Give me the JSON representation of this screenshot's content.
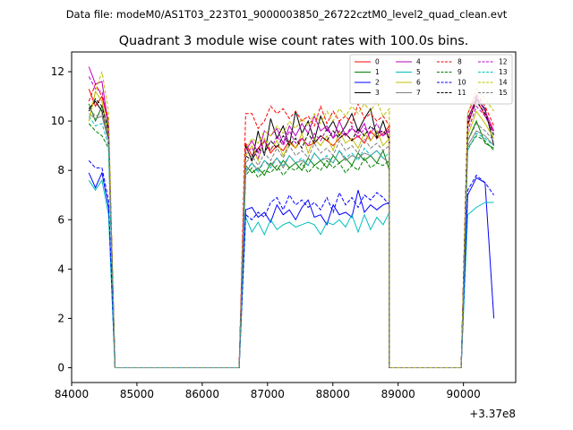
{
  "chart_data": {
    "type": "line",
    "suptitle": "Data file: modeM0/AS1T03_223T01_9000003850_26722cztM0_level2_quad_clean.evt",
    "title": "Quadrant 3 module wise count rates with 100.0s bins.",
    "xlabel": "",
    "ylabel": "",
    "offset_label": "+3.37e8",
    "x_offset": 337000000,
    "xlim": [
      84000,
      90800
    ],
    "ylim": [
      -0.6,
      12.8
    ],
    "x_ticks": [
      84000,
      85000,
      86000,
      87000,
      88000,
      89000,
      90000
    ],
    "x_tick_labels": [
      "84000",
      "85000",
      "86000",
      "87000",
      "88000",
      "89000",
      "90000"
    ],
    "y_ticks": [
      0,
      2,
      4,
      6,
      8,
      10,
      12
    ],
    "y_tick_labels": [
      "0",
      "2",
      "4",
      "6",
      "8",
      "10",
      "12"
    ],
    "grid": false,
    "legend_position": "top-right",
    "legend_columns": 4,
    "segments": [
      {
        "start": 84265,
        "end": 84665
      },
      {
        "start": 86665,
        "end": 88865
      },
      {
        "start": 90065,
        "end": 90465
      }
    ],
    "gap_ends": [
      [
        84665,
        86565
      ],
      [
        88865,
        89965
      ]
    ],
    "series": [
      {
        "name": "0",
        "color": "#ff0000",
        "dashed": false,
        "seg_values": [
          [
            11.3,
            10.6,
            11.0,
            9.9,
            0
          ],
          [
            9.1,
            8.6,
            8.9,
            9.2,
            8.7,
            9.0,
            8.8,
            9.2,
            8.9,
            9.3,
            9.0,
            9.1,
            9.4,
            9.2,
            9.0,
            9.3,
            9.5,
            9.2,
            9.4,
            9.1,
            9.6,
            9.3,
            9.5,
            9.8
          ],
          [
            9.8,
            10.9,
            10.2,
            9.6
          ]
        ]
      },
      {
        "name": "1",
        "color": "#008000",
        "dashed": false,
        "seg_values": [
          [
            10.7,
            10.0,
            10.6,
            9.7,
            0
          ],
          [
            8.2,
            7.9,
            8.1,
            7.8,
            8.3,
            8.0,
            8.4,
            8.1,
            8.3,
            8.0,
            8.5,
            8.2,
            8.4,
            8.1,
            8.6,
            8.3,
            8.5,
            8.2,
            8.7,
            8.4,
            8.6,
            8.3,
            8.8,
            8.0
          ],
          [
            9.2,
            10.0,
            9.1,
            8.9
          ]
        ]
      },
      {
        "name": "2",
        "color": "#0000ff",
        "dashed": false,
        "seg_values": [
          [
            7.9,
            7.3,
            7.9,
            6.5,
            0
          ],
          [
            6.4,
            6.5,
            6.1,
            6.3,
            5.9,
            6.6,
            6.2,
            6.4,
            6.0,
            6.5,
            6.8,
            6.1,
            6.2,
            5.8,
            6.6,
            6.2,
            6.3,
            6.1,
            7.2,
            6.3,
            6.6,
            6.4,
            6.6,
            6.7
          ],
          [
            7.0,
            7.7,
            7.5,
            2.0
          ]
        ]
      },
      {
        "name": "3",
        "color": "#000000",
        "dashed": false,
        "seg_values": [
          [
            10.5,
            10.8,
            10.4,
            9.3,
            0
          ],
          [
            9.0,
            8.4,
            9.6,
            8.6,
            10.1,
            9.3,
            9.8,
            9.0,
            10.4,
            9.5,
            10.0,
            9.2,
            10.2,
            9.6,
            10.0,
            9.4,
            9.8,
            10.3,
            9.6,
            10.1,
            10.5,
            9.3,
            10.0,
            9.2
          ],
          [
            10.1,
            10.9,
            10.5,
            9.0
          ]
        ]
      },
      {
        "name": "4",
        "color": "#bf00bf",
        "dashed": false,
        "seg_values": [
          [
            12.2,
            11.5,
            11.6,
            9.8,
            0
          ],
          [
            8.8,
            9.2,
            8.7,
            9.6,
            9.4,
            9.7,
            9.1,
            9.8,
            9.4,
            9.9,
            9.5,
            10.2,
            9.6,
            9.8,
            9.3,
            10.0,
            9.4,
            9.7,
            9.5,
            9.9,
            9.2,
            9.6,
            9.4,
            9.7
          ],
          [
            10.0,
            11.0,
            10.4,
            9.6
          ]
        ]
      },
      {
        "name": "5",
        "color": "#00bfbf",
        "dashed": false,
        "seg_values": [
          [
            7.6,
            7.2,
            7.6,
            6.2,
            0
          ],
          [
            6.1,
            5.5,
            5.9,
            5.4,
            6.0,
            5.6,
            5.8,
            5.9,
            5.7,
            5.8,
            5.9,
            5.8,
            5.4,
            5.9,
            5.8,
            6.0,
            5.7,
            6.2,
            5.5,
            6.2,
            5.6,
            6.1,
            5.8,
            6.3
          ],
          [
            6.2,
            6.5,
            6.7,
            6.7
          ]
        ]
      },
      {
        "name": "6",
        "color": "#bfbf00",
        "dashed": false,
        "seg_values": [
          [
            10.0,
            11.2,
            10.8,
            9.5,
            0
          ],
          [
            8.6,
            9.0,
            8.4,
            9.3,
            8.8,
            9.2,
            8.6,
            9.1,
            8.9,
            9.5,
            8.7,
            9.3,
            9.0,
            9.4,
            8.8,
            9.6,
            9.1,
            9.3,
            8.9,
            9.5,
            9.2,
            9.6,
            9.0,
            9.3
          ],
          [
            9.4,
            10.4,
            9.9,
            9.3
          ]
        ]
      },
      {
        "name": "7",
        "color": "#808080",
        "dashed": false,
        "seg_values": [
          [
            10.3,
            10.1,
            10.2,
            9.2,
            0
          ],
          [
            7.9,
            8.3,
            8.0,
            8.4,
            8.2,
            8.5,
            8.1,
            8.6,
            8.3,
            8.4,
            8.2,
            8.7,
            8.4,
            8.5,
            8.3,
            8.8,
            8.4,
            8.6,
            8.5,
            8.7,
            8.6,
            8.8,
            8.5,
            8.3
          ],
          [
            9.0,
            9.6,
            9.4,
            9.0
          ]
        ]
      },
      {
        "name": "8",
        "color": "#ff0000",
        "dashed": true,
        "seg_values": [
          [
            10.8,
            11.5,
            11.0,
            10.1,
            0
          ],
          [
            10.3,
            10.3,
            9.7,
            10.0,
            10.6,
            10.3,
            10.5,
            10.1,
            10.4,
            10.0,
            10.2,
            9.8,
            10.6,
            9.9,
            10.4,
            10.0,
            10.2,
            9.9,
            10.7,
            10.1,
            10.3,
            10.0,
            10.2,
            9.8
          ],
          [
            10.3,
            11.1,
            10.6,
            9.8
          ]
        ]
      },
      {
        "name": "9",
        "color": "#008000",
        "dashed": true,
        "seg_values": [
          [
            9.9,
            9.6,
            9.4,
            8.9,
            0
          ],
          [
            7.8,
            8.1,
            7.7,
            8.0,
            7.9,
            8.2,
            7.8,
            8.1,
            8.0,
            8.3,
            7.9,
            8.2,
            8.0,
            8.4,
            8.1,
            8.3,
            7.9,
            8.2,
            8.0,
            8.5,
            8.1,
            8.3,
            8.2,
            8.4
          ],
          [
            8.9,
            9.4,
            9.2,
            8.8
          ]
        ]
      },
      {
        "name": "10",
        "color": "#0000ff",
        "dashed": true,
        "seg_values": [
          [
            8.4,
            8.1,
            8.1,
            6.8,
            0
          ],
          [
            6.2,
            6.0,
            6.3,
            6.1,
            6.7,
            6.9,
            6.4,
            7.0,
            6.6,
            6.8,
            6.5,
            6.7,
            6.4,
            6.9,
            6.3,
            7.1,
            6.6,
            6.9,
            6.5,
            7.0,
            6.8,
            7.1,
            6.9,
            6.6
          ],
          [
            7.2,
            7.8,
            7.5,
            7.0
          ]
        ]
      },
      {
        "name": "11",
        "color": "#000000",
        "dashed": true,
        "seg_values": [
          [
            10.4,
            10.9,
            10.6,
            9.6,
            0
          ],
          [
            8.6,
            8.4,
            8.9,
            8.7,
            9.2,
            8.9,
            9.4,
            9.0,
            9.3,
            8.9,
            9.5,
            9.1,
            9.4,
            9.2,
            9.6,
            9.3,
            9.5,
            9.2,
            9.7,
            9.4,
            9.8,
            9.5,
            9.6,
            9.3
          ],
          [
            9.9,
            10.8,
            10.3,
            9.4
          ]
        ]
      },
      {
        "name": "12",
        "color": "#bf00bf",
        "dashed": true,
        "seg_values": [
          [
            11.8,
            11.3,
            11.2,
            9.8,
            0
          ],
          [
            8.7,
            8.9,
            8.5,
            9.2,
            8.8,
            9.4,
            9.0,
            9.6,
            9.1,
            9.3,
            9.0,
            9.5,
            9.2,
            9.7,
            9.3,
            9.6,
            9.4,
            9.8,
            9.3,
            9.7,
            9.5,
            9.9,
            9.4,
            9.6
          ],
          [
            9.6,
            10.6,
            10.2,
            9.5
          ]
        ]
      },
      {
        "name": "13",
        "color": "#00bfbf",
        "dashed": true,
        "seg_values": [
          [
            10.2,
            9.8,
            9.9,
            9.0,
            0
          ],
          [
            8.0,
            8.3,
            7.9,
            8.4,
            8.1,
            8.5,
            8.2,
            8.6,
            8.3,
            8.5,
            8.2,
            8.7,
            8.4,
            8.6,
            8.3,
            8.8,
            8.5,
            8.7,
            8.4,
            8.9,
            8.6,
            8.8,
            8.5,
            8.7
          ],
          [
            8.8,
            9.5,
            9.3,
            9.0
          ]
        ]
      },
      {
        "name": "14",
        "color": "#bfbf00",
        "dashed": true,
        "seg_values": [
          [
            10.0,
            11.2,
            12.0,
            10.4,
            0
          ],
          [
            8.9,
            9.3,
            9.1,
            9.6,
            9.4,
            9.8,
            9.5,
            10.0,
            9.7,
            10.1,
            9.8,
            10.3,
            9.9,
            10.4,
            10.0,
            10.5,
            10.2,
            10.6,
            10.3,
            10.7,
            10.4,
            10.8,
            10.2,
            10.5
          ],
          [
            10.3,
            11.3,
            10.9,
            10.4
          ]
        ]
      },
      {
        "name": "15",
        "color": "#808080",
        "dashed": true,
        "seg_values": [
          [
            10.5,
            10.2,
            10.3,
            9.4,
            0
          ],
          [
            8.3,
            8.6,
            8.2,
            8.7,
            8.4,
            8.9,
            8.5,
            9.0,
            8.6,
            8.8,
            8.5,
            9.1,
            8.7,
            8.9,
            8.6,
            9.2,
            8.8,
            9.0,
            8.7,
            9.3,
            8.9,
            9.1,
            8.8,
            9.0
          ],
          [
            9.2,
            9.9,
            9.6,
            9.2
          ]
        ]
      }
    ]
  }
}
